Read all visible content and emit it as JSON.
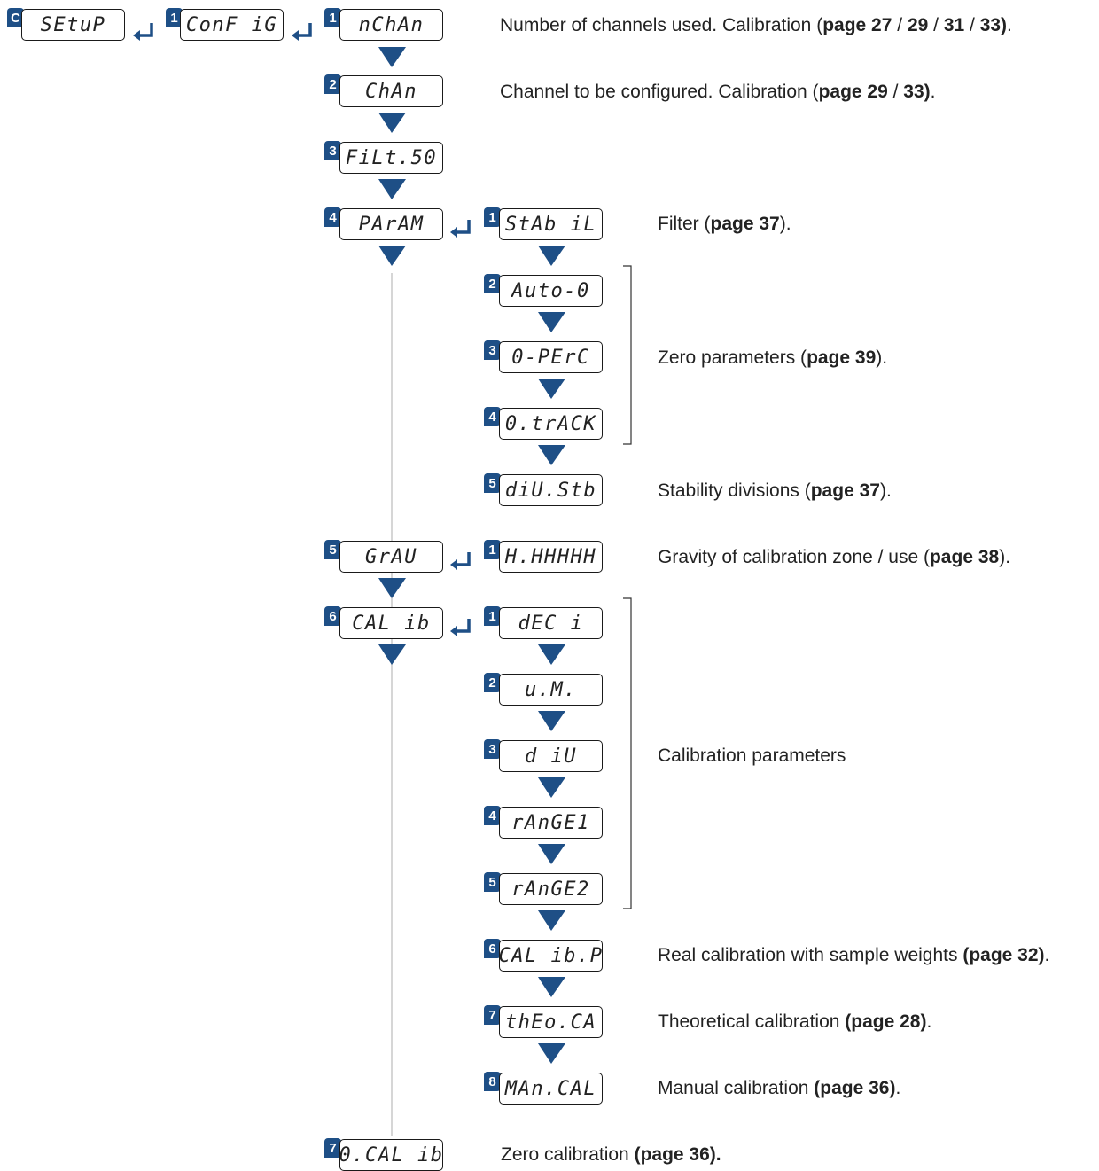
{
  "top": {
    "c": {
      "badge": "C",
      "label": "SEtuP"
    },
    "cfg": {
      "badge": "1",
      "label": "ConF iG"
    }
  },
  "main": [
    {
      "badge": "1",
      "label": "nChAn",
      "desc": {
        "text": "Number of channels used. Calibration (",
        "ref": "page 27",
        "sep1": " / ",
        "ref2": "29",
        "sep2": " / ",
        "ref3": "31",
        "sep3": " / ",
        "ref4": "33)",
        "end": "."
      }
    },
    {
      "badge": "2",
      "label": "ChAn",
      "desc": {
        "text": "Channel to be configured. Calibration (",
        "ref": "page 29",
        "sep1": " / ",
        "ref2": "33)",
        "end": "."
      }
    },
    {
      "badge": "3",
      "label": "FiLt.50"
    },
    {
      "badge": "4",
      "label": "PArAM"
    },
    {
      "badge": "5",
      "label": "GrAU"
    },
    {
      "badge": "6",
      "label": "CAL ib"
    },
    {
      "badge": "7",
      "label": "0.CAL ib",
      "desc": {
        "text": "Zero calibration ",
        "ref": "(page 36).",
        "end": ""
      }
    }
  ],
  "param": [
    {
      "badge": "1",
      "label": "StAb iL"
    },
    {
      "badge": "2",
      "label": "Auto-0"
    },
    {
      "badge": "3",
      "label": "0-PErC"
    },
    {
      "badge": "4",
      "label": "0.trACK"
    },
    {
      "badge": "5",
      "label": "diU.Stb"
    }
  ],
  "grav": [
    {
      "badge": "1",
      "label": "H.HHHHH"
    }
  ],
  "calib": [
    {
      "badge": "1",
      "label": "dEC i"
    },
    {
      "badge": "2",
      "label": "u.M."
    },
    {
      "badge": "3",
      "label": "d iU"
    },
    {
      "badge": "4",
      "label": "rAnGE1"
    },
    {
      "badge": "5",
      "label": "rAnGE2"
    },
    {
      "badge": "6",
      "label": "CAL ib.P"
    },
    {
      "badge": "7",
      "label": "thEo.CA"
    },
    {
      "badge": "8",
      "label": "MAn.CAL"
    }
  ],
  "descriptions": {
    "filter": {
      "text": "Filter (",
      "ref": "page 37",
      "end": ")."
    },
    "zero": {
      "text": "Zero parameters (",
      "ref": "page 39",
      "end": ")."
    },
    "stability": {
      "text": "Stability divisions (",
      "ref": "page 37",
      "end": ")."
    },
    "gravity": {
      "text": "Gravity of calibration zone / use (",
      "ref": "page 38",
      "end": ")."
    },
    "calparams": {
      "text": "Calibration parameters"
    },
    "real": {
      "text": "Real calibration with sample weights ",
      "ref": "(page 32)",
      "end": "."
    },
    "theo": {
      "text": "Theoretical calibration ",
      "ref": "(page 28)",
      "end": "."
    },
    "manual": {
      "text": "Manual calibration ",
      "ref": "(page 36)",
      "end": "."
    }
  },
  "colors": {
    "accent": "#1e4f86",
    "border": "#1a1a1a",
    "connector": "#c8c8c8"
  }
}
